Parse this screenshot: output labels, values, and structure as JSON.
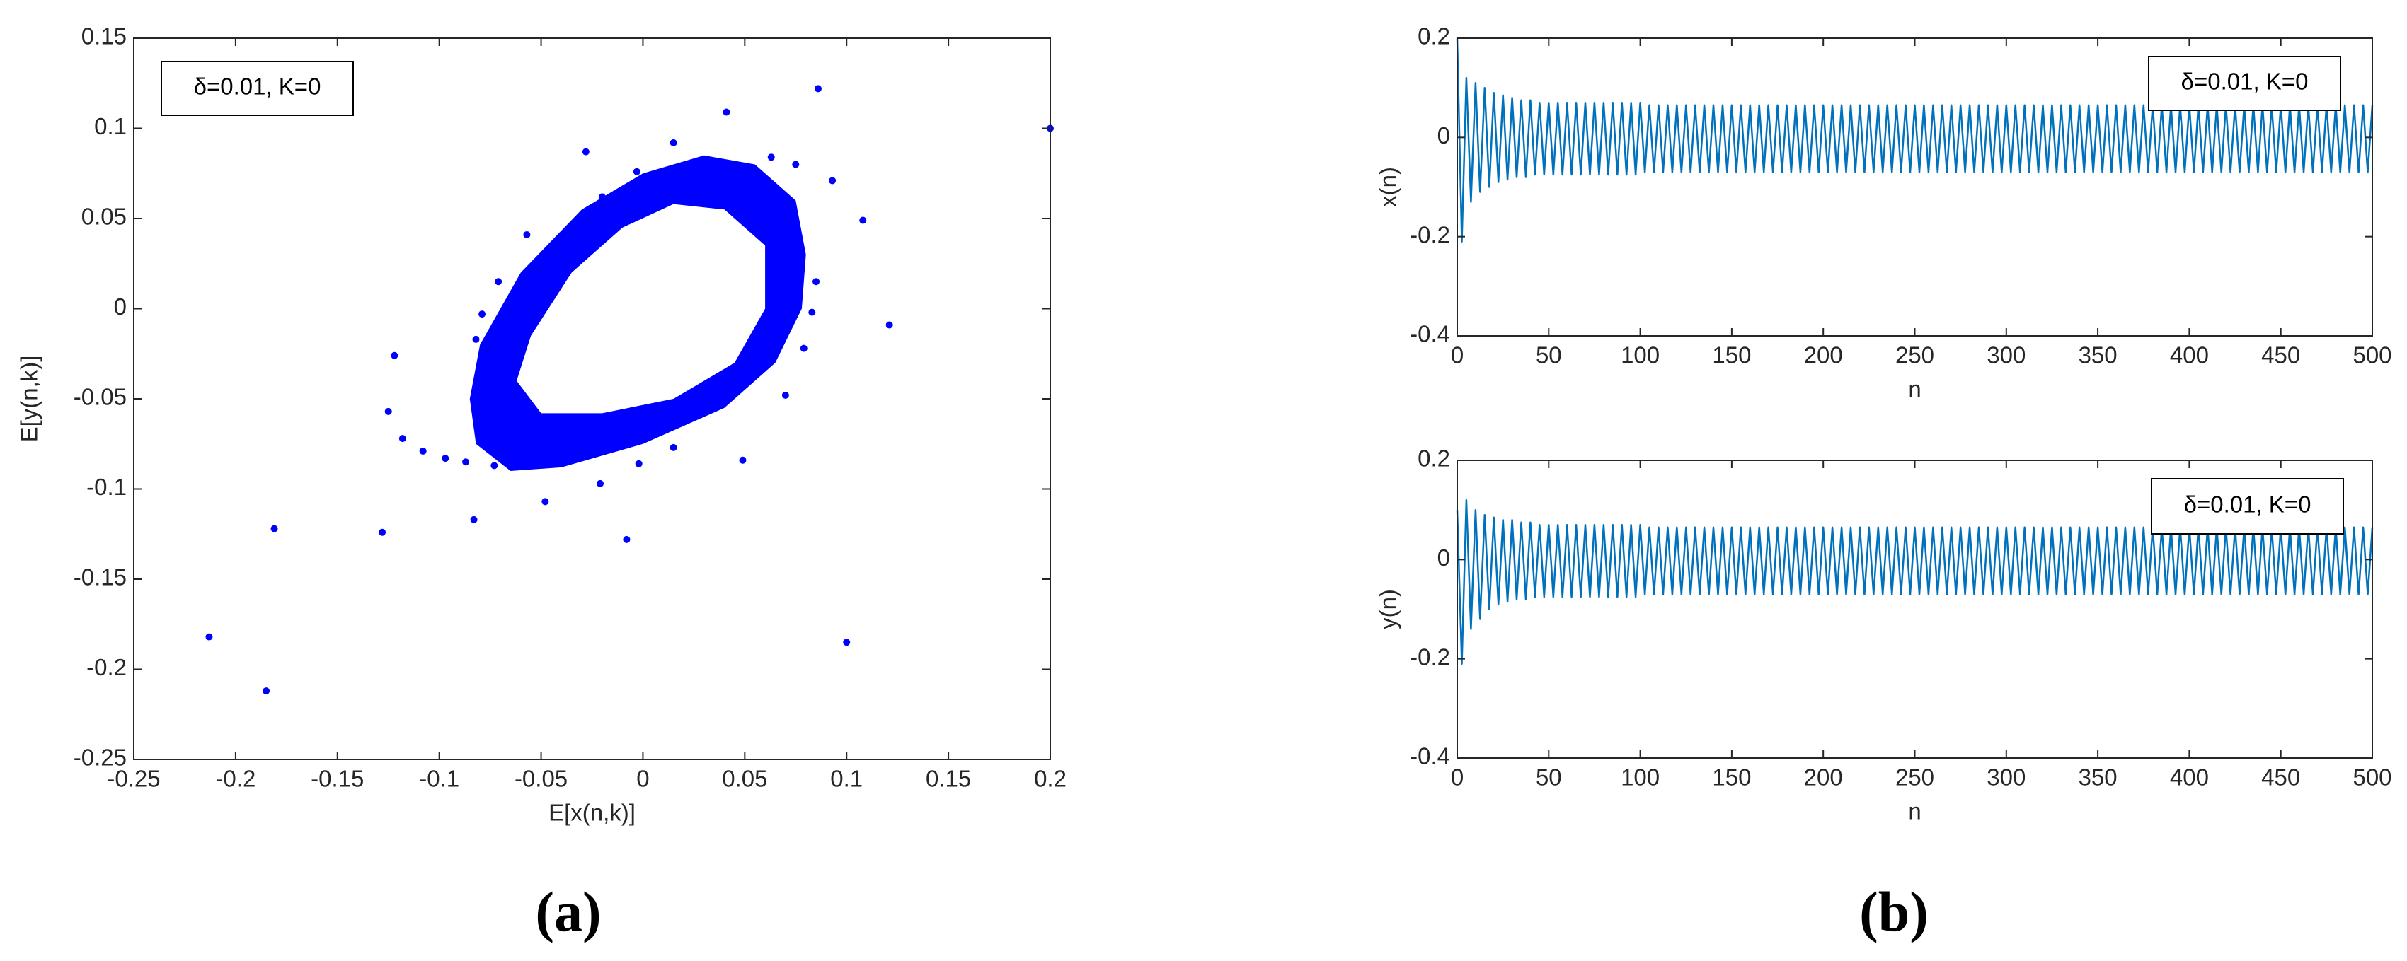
{
  "chart_data": [
    {
      "type": "scatter",
      "xlabel": "E[x(n,k)]",
      "ylabel": "E[y(n,k)]",
      "annotation": "δ=0.01, K=0",
      "color": "#0000ff",
      "xlim": [
        -0.25,
        0.2
      ],
      "xticks": [
        -0.25,
        -0.2,
        -0.15,
        -0.1,
        -0.05,
        0,
        0.05,
        0.1,
        0.15,
        0.2
      ],
      "ylim": [
        -0.25,
        0.15
      ],
      "yticks": [
        -0.25,
        -0.2,
        -0.15,
        -0.1,
        -0.05,
        0,
        0.05,
        0.1,
        0.15
      ],
      "ring": {
        "outer": {
          "x": [
            -0.085,
            -0.08,
            -0.06,
            -0.03,
            0,
            0.03,
            0.055,
            0.075,
            0.08,
            0.078,
            0.065,
            0.04,
            0,
            -0.04,
            -0.065,
            -0.082
          ],
          "y": [
            -0.05,
            -0.02,
            0.02,
            0.055,
            0.075,
            0.085,
            0.08,
            0.06,
            0.03,
            0,
            -0.03,
            -0.055,
            -0.075,
            -0.088,
            -0.09,
            -0.075
          ]
        },
        "inner": {
          "x": [
            -0.062,
            -0.055,
            -0.035,
            -0.01,
            0.015,
            0.04,
            0.06,
            0.06,
            0.045,
            0.015,
            -0.02,
            -0.05
          ],
          "y": [
            -0.04,
            -0.015,
            0.02,
            0.045,
            0.058,
            0.055,
            0.035,
            0,
            -0.03,
            -0.05,
            -0.058,
            -0.058
          ]
        }
      },
      "x": [
        0.2,
        0.086,
        0.041,
        -0.028,
        0.015,
        -0.003,
        0.063,
        0.075,
        0.093,
        0.108,
        0.085,
        0.083,
        0.121,
        0.079,
        0.07,
        0.049,
        0.015,
        -0.002,
        -0.008,
        -0.021,
        -0.048,
        -0.073,
        -0.087,
        -0.083,
        -0.097,
        -0.108,
        -0.118,
        -0.125,
        -0.122,
        -0.082,
        -0.079,
        -0.071,
        -0.057,
        -0.128,
        -0.181,
        -0.213,
        -0.185,
        0.1,
        -0.02
      ],
      "y": [
        0.1,
        0.122,
        0.109,
        0.087,
        0.092,
        0.076,
        0.084,
        0.08,
        0.071,
        0.049,
        0.015,
        -0.002,
        -0.009,
        -0.022,
        -0.048,
        -0.084,
        -0.077,
        -0.086,
        -0.128,
        -0.097,
        -0.107,
        -0.087,
        -0.085,
        -0.117,
        -0.083,
        -0.079,
        -0.072,
        -0.057,
        -0.026,
        -0.017,
        -0.003,
        0.015,
        0.041,
        -0.124,
        -0.122,
        -0.182,
        -0.212,
        -0.185,
        0.062
      ]
    },
    {
      "type": "line",
      "xlabel": "n",
      "ylabel": "x(n)",
      "annotation": "δ=0.01, K=0",
      "color": "#0072bd",
      "xlim": [
        0,
        500
      ],
      "xticks": [
        0,
        50,
        100,
        150,
        200,
        250,
        300,
        350,
        400,
        450,
        500
      ],
      "ylim": [
        -0.4,
        0.2
      ],
      "yticks": [
        -0.4,
        -0.2,
        0,
        0.2
      ],
      "x": [
        0,
        2.5,
        5,
        7.5,
        10,
        12.5,
        15,
        17.5,
        20,
        22.5,
        25,
        27.5,
        30,
        32.5,
        35,
        37.5,
        40,
        42.5,
        45,
        47.5,
        50,
        52.5,
        55,
        57.5,
        60,
        62.5,
        65,
        67.5,
        70,
        72.5,
        75,
        77.5,
        80,
        82.5,
        85,
        87.5,
        90,
        92.5,
        95,
        97.5,
        100,
        102.5,
        105,
        107.5,
        110,
        112.5,
        115,
        117.5,
        120,
        122.5,
        125,
        127.5,
        130,
        132.5,
        135,
        137.5,
        140,
        142.5,
        145,
        147.5,
        150,
        152.5,
        155,
        157.5,
        160,
        162.5,
        165,
        167.5,
        170,
        172.5,
        175,
        177.5,
        180,
        182.5,
        185,
        187.5,
        190,
        192.5,
        195,
        197.5,
        200,
        202.5,
        205,
        207.5,
        210,
        212.5,
        215,
        217.5,
        220,
        222.5,
        225,
        227.5,
        230,
        232.5,
        235,
        237.5,
        240,
        242.5,
        245,
        247.5,
        250,
        252.5,
        255,
        257.5,
        260,
        262.5,
        265,
        267.5,
        270,
        272.5,
        275,
        277.5,
        280,
        282.5,
        285,
        287.5,
        290,
        292.5,
        295,
        297.5,
        300,
        302.5,
        305,
        307.5,
        310,
        312.5,
        315,
        317.5,
        320,
        322.5,
        325,
        327.5,
        330,
        332.5,
        335,
        337.5,
        340,
        342.5,
        345,
        347.5,
        350,
        352.5,
        355,
        357.5,
        360,
        362.5,
        365,
        367.5,
        370,
        372.5,
        375,
        377.5,
        380,
        382.5,
        385,
        387.5,
        390,
        392.5,
        395,
        397.5,
        400,
        402.5,
        405,
        407.5,
        410,
        412.5,
        415,
        417.5,
        420,
        422.5,
        425,
        427.5,
        430,
        432.5,
        435,
        437.5,
        440,
        442.5,
        445,
        447.5,
        450,
        452.5,
        455,
        457.5,
        460,
        462.5,
        465,
        467.5,
        470,
        472.5,
        475,
        477.5,
        480,
        482.5,
        485,
        487.5,
        490,
        492.5,
        495,
        497.5,
        500
      ],
      "values": [
        0.2,
        -0.21,
        0.12,
        -0.13,
        0.11,
        -0.11,
        0.1,
        -0.1,
        0.09,
        -0.09,
        0.085,
        -0.085,
        0.08,
        -0.08,
        0.075,
        -0.08,
        0.075,
        -0.075,
        0.07,
        -0.075,
        0.07,
        -0.075,
        0.07,
        -0.075,
        0.07,
        -0.075,
        0.07,
        -0.075,
        0.07,
        -0.075,
        0.07,
        -0.075,
        0.07,
        -0.075,
        0.07,
        -0.075,
        0.07,
        -0.075,
        0.07,
        -0.075,
        0.07,
        -0.07,
        0.065,
        -0.07,
        0.065,
        -0.07,
        0.065,
        -0.07,
        0.065,
        -0.07,
        0.065,
        -0.07,
        0.065,
        -0.07,
        0.065,
        -0.07,
        0.065,
        -0.07,
        0.065,
        -0.07,
        0.065,
        -0.07,
        0.065,
        -0.07,
        0.065,
        -0.07,
        0.065,
        -0.07,
        0.065,
        -0.07,
        0.065,
        -0.07,
        0.065,
        -0.07,
        0.065,
        -0.07,
        0.065,
        -0.07,
        0.065,
        -0.07,
        0.065,
        -0.07,
        0.065,
        -0.07,
        0.065,
        -0.07,
        0.065,
        -0.07,
        0.065,
        -0.07,
        0.065,
        -0.07,
        0.065,
        -0.07,
        0.065,
        -0.07,
        0.065,
        -0.07,
        0.065,
        -0.07,
        0.065,
        -0.07,
        0.065,
        -0.07,
        0.065,
        -0.07,
        0.065,
        -0.07,
        0.065,
        -0.07,
        0.065,
        -0.07,
        0.065,
        -0.07,
        0.065,
        -0.07,
        0.065,
        -0.07,
        0.065,
        -0.07,
        0.065,
        -0.07,
        0.065,
        -0.07,
        0.065,
        -0.07,
        0.065,
        -0.07,
        0.065,
        -0.07,
        0.065,
        -0.07,
        0.065,
        -0.07,
        0.065,
        -0.07,
        0.065,
        -0.07,
        0.065,
        -0.07,
        0.065,
        -0.07,
        0.065,
        -0.07,
        0.065,
        -0.07,
        0.065,
        -0.07,
        0.065,
        -0.07,
        0.065,
        -0.07,
        0.065,
        -0.07,
        0.065,
        -0.07,
        0.065,
        -0.07,
        0.065,
        -0.07,
        0.065,
        -0.07,
        0.065,
        -0.07,
        0.065,
        -0.07,
        0.065,
        -0.07,
        0.065,
        -0.07,
        0.065,
        -0.07,
        0.065,
        -0.07,
        0.065,
        -0.07,
        0.065,
        -0.07,
        0.065,
        -0.07,
        0.065,
        -0.07,
        0.065,
        -0.07,
        0.065,
        -0.07,
        0.065,
        -0.07,
        0.065,
        -0.07,
        0.065,
        -0.07,
        0.065,
        -0.07,
        0.065,
        -0.07,
        0.065,
        -0.07,
        0.065,
        -0.07,
        0.065
      ]
    },
    {
      "type": "line",
      "xlabel": "n",
      "ylabel": "y(n)",
      "annotation": "δ=0.01, K=0",
      "color": "#0072bd",
      "xlim": [
        0,
        500
      ],
      "xticks": [
        0,
        50,
        100,
        150,
        200,
        250,
        300,
        350,
        400,
        450,
        500
      ],
      "ylim": [
        -0.4,
        0.2
      ],
      "yticks": [
        -0.4,
        -0.2,
        0,
        0.2
      ],
      "x": [
        0,
        2.5,
        5,
        7.5,
        10,
        12.5,
        15,
        17.5,
        20,
        22.5,
        25,
        27.5,
        30,
        32.5,
        35,
        37.5,
        40,
        42.5,
        45,
        47.5,
        50,
        52.5,
        55,
        57.5,
        60,
        62.5,
        65,
        67.5,
        70,
        72.5,
        75,
        77.5,
        80,
        82.5,
        85,
        87.5,
        90,
        92.5,
        95,
        97.5,
        100,
        102.5,
        105,
        107.5,
        110,
        112.5,
        115,
        117.5,
        120,
        122.5,
        125,
        127.5,
        130,
        132.5,
        135,
        137.5,
        140,
        142.5,
        145,
        147.5,
        150,
        152.5,
        155,
        157.5,
        160,
        162.5,
        165,
        167.5,
        170,
        172.5,
        175,
        177.5,
        180,
        182.5,
        185,
        187.5,
        190,
        192.5,
        195,
        197.5,
        200,
        202.5,
        205,
        207.5,
        210,
        212.5,
        215,
        217.5,
        220,
        222.5,
        225,
        227.5,
        230,
        232.5,
        235,
        237.5,
        240,
        242.5,
        245,
        247.5,
        250,
        252.5,
        255,
        257.5,
        260,
        262.5,
        265,
        267.5,
        270,
        272.5,
        275,
        277.5,
        280,
        282.5,
        285,
        287.5,
        290,
        292.5,
        295,
        297.5,
        300,
        302.5,
        305,
        307.5,
        310,
        312.5,
        315,
        317.5,
        320,
        322.5,
        325,
        327.5,
        330,
        332.5,
        335,
        337.5,
        340,
        342.5,
        345,
        347.5,
        350,
        352.5,
        355,
        357.5,
        360,
        362.5,
        365,
        367.5,
        370,
        372.5,
        375,
        377.5,
        380,
        382.5,
        385,
        387.5,
        390,
        392.5,
        395,
        397.5,
        400,
        402.5,
        405,
        407.5,
        410,
        412.5,
        415,
        417.5,
        420,
        422.5,
        425,
        427.5,
        430,
        432.5,
        435,
        437.5,
        440,
        442.5,
        445,
        447.5,
        450,
        452.5,
        455,
        457.5,
        460,
        462.5,
        465,
        467.5,
        470,
        472.5,
        475,
        477.5,
        480,
        482.5,
        485,
        487.5,
        490,
        492.5,
        495,
        497.5,
        500
      ],
      "values": [
        0.1,
        -0.21,
        0.12,
        -0.14,
        0.1,
        -0.12,
        0.09,
        -0.1,
        0.085,
        -0.09,
        0.08,
        -0.085,
        0.08,
        -0.08,
        0.075,
        -0.08,
        0.075,
        -0.075,
        0.07,
        -0.075,
        0.07,
        -0.075,
        0.07,
        -0.075,
        0.07,
        -0.075,
        0.07,
        -0.075,
        0.07,
        -0.075,
        0.07,
        -0.075,
        0.07,
        -0.075,
        0.07,
        -0.075,
        0.07,
        -0.075,
        0.07,
        -0.075,
        0.07,
        -0.07,
        0.065,
        -0.07,
        0.065,
        -0.07,
        0.065,
        -0.07,
        0.065,
        -0.07,
        0.065,
        -0.07,
        0.065,
        -0.07,
        0.065,
        -0.07,
        0.065,
        -0.07,
        0.065,
        -0.07,
        0.065,
        -0.07,
        0.065,
        -0.07,
        0.065,
        -0.07,
        0.065,
        -0.07,
        0.065,
        -0.07,
        0.065,
        -0.07,
        0.065,
        -0.07,
        0.065,
        -0.07,
        0.065,
        -0.07,
        0.065,
        -0.07,
        0.065,
        -0.07,
        0.065,
        -0.07,
        0.065,
        -0.07,
        0.065,
        -0.07,
        0.065,
        -0.07,
        0.065,
        -0.07,
        0.065,
        -0.07,
        0.065,
        -0.07,
        0.065,
        -0.07,
        0.065,
        -0.07,
        0.065,
        -0.07,
        0.065,
        -0.07,
        0.065,
        -0.07,
        0.065,
        -0.07,
        0.065,
        -0.07,
        0.065,
        -0.07,
        0.065,
        -0.07,
        0.065,
        -0.07,
        0.065,
        -0.07,
        0.065,
        -0.07,
        0.065,
        -0.07,
        0.065,
        -0.07,
        0.065,
        -0.07,
        0.065,
        -0.07,
        0.065,
        -0.07,
        0.065,
        -0.07,
        0.065,
        -0.07,
        0.065,
        -0.07,
        0.065,
        -0.07,
        0.065,
        -0.07,
        0.065,
        -0.07,
        0.065,
        -0.07,
        0.065,
        -0.07,
        0.065,
        -0.07,
        0.065,
        -0.07,
        0.065,
        -0.07,
        0.065,
        -0.07,
        0.065,
        -0.07,
        0.065,
        -0.07,
        0.065,
        -0.07,
        0.065,
        -0.07,
        0.065,
        -0.07,
        0.065,
        -0.07,
        0.065,
        -0.07,
        0.065,
        -0.07,
        0.065,
        -0.07,
        0.065,
        -0.07,
        0.065,
        -0.07,
        0.065,
        -0.07,
        0.065,
        -0.07,
        0.065,
        -0.07,
        0.065,
        -0.07,
        0.065,
        -0.07,
        0.065,
        -0.07,
        0.065,
        -0.07,
        0.065,
        -0.07,
        0.065,
        -0.07,
        0.065,
        -0.07,
        0.065,
        -0.07,
        0.065,
        -0.07,
        0.065
      ]
    }
  ],
  "panel_labels": [
    "(a)",
    "(b)"
  ]
}
